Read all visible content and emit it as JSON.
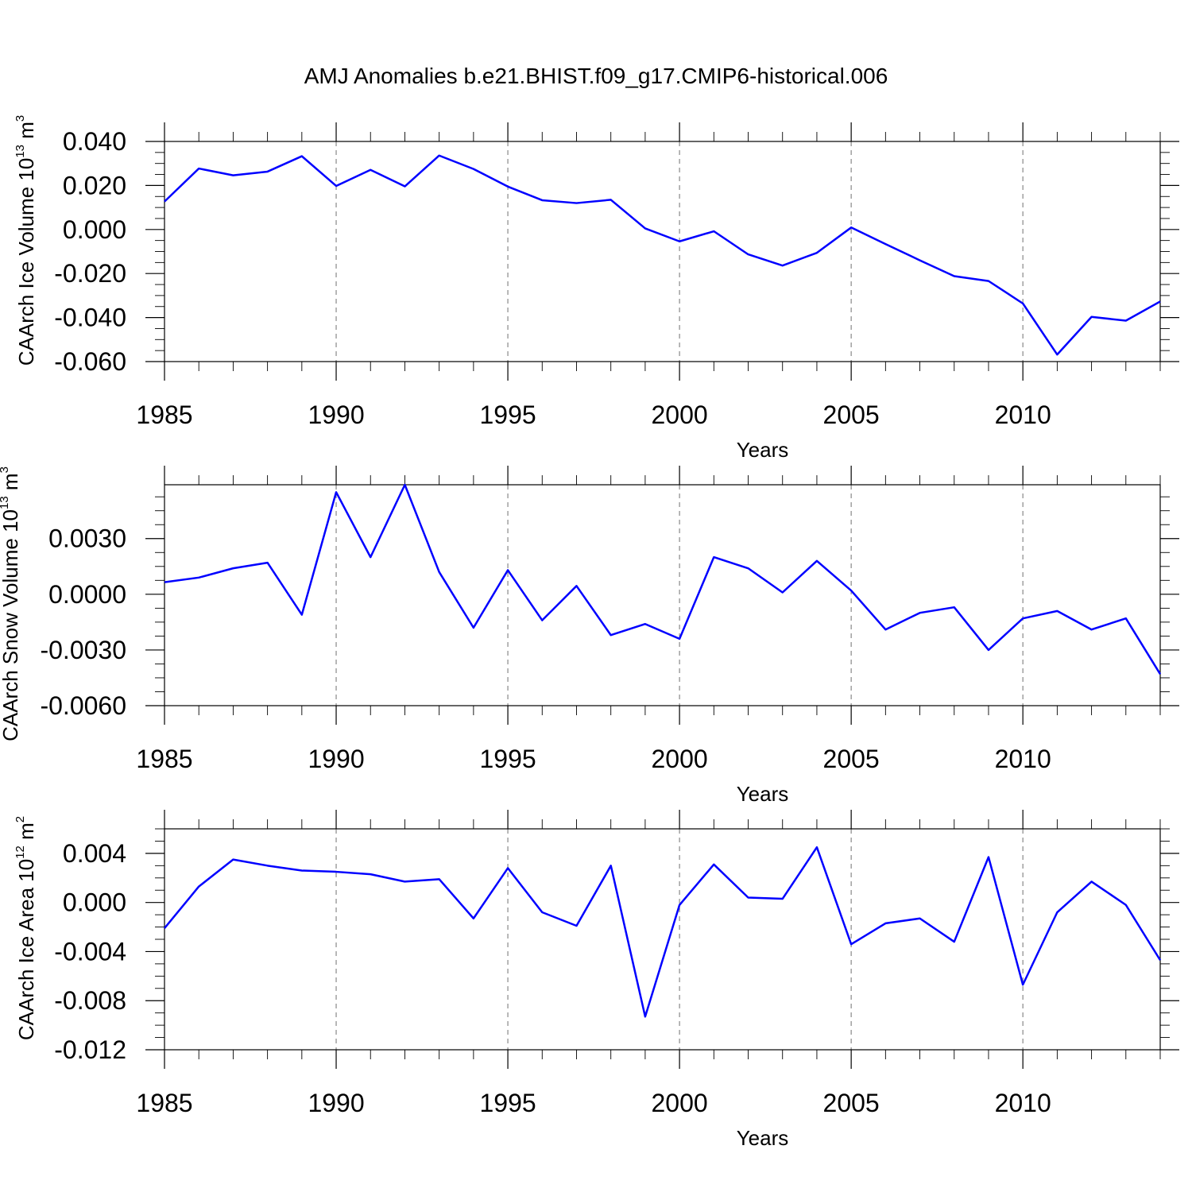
{
  "figure": {
    "title": "AMJ Anomalies b.e21.BHIST.f09_g17.CMIP6-historical.006"
  },
  "chart_data": [
    {
      "type": "line",
      "title": "",
      "xlabel": "Years",
      "ylabel_main": "CAArch Ice Volume 10",
      "ylabel_exp": "13",
      "ylabel_unit": " m",
      "ylabel_unit_exp": "3",
      "xlim": [
        1985,
        2014
      ],
      "ylim": [
        -0.06,
        0.04
      ],
      "xticks": [
        1985,
        1990,
        1995,
        2000,
        2005,
        2010
      ],
      "xtick_labels": [
        "1985",
        "1990",
        "1995",
        "2000",
        "2005",
        "2010"
      ],
      "yticks": [
        -0.06,
        -0.04,
        -0.02,
        0.0,
        0.02,
        0.04
      ],
      "ytick_labels": [
        "-0.060",
        "-0.040",
        "-0.020",
        "0.000",
        "0.020",
        "0.040"
      ],
      "grid": "vertical dashed at major x ticks",
      "x": [
        1985,
        1986,
        1987,
        1988,
        1989,
        1990,
        1991,
        1992,
        1993,
        1994,
        1995,
        1996,
        1997,
        1998,
        1999,
        2000,
        2001,
        2002,
        2003,
        2004,
        2005,
        2006,
        2007,
        2008,
        2009,
        2010,
        2011,
        2012,
        2013,
        2014
      ],
      "series": [
        {
          "name": "CAArch Ice Volume",
          "color": "#0000ff",
          "values": [
            0.0127,
            0.0277,
            0.0246,
            0.0263,
            0.0333,
            0.0198,
            0.0271,
            0.0196,
            0.0336,
            0.0275,
            0.0195,
            0.0133,
            0.012,
            0.0135,
            0.0005,
            -0.0054,
            -0.0008,
            -0.0113,
            -0.0164,
            -0.0106,
            0.0009,
            -0.0066,
            -0.014,
            -0.0212,
            -0.0234,
            -0.0336,
            -0.0568,
            -0.0397,
            -0.0414,
            -0.0327
          ]
        }
      ]
    },
    {
      "type": "line",
      "title": "",
      "xlabel": "Years",
      "ylabel_main": "CAArch Snow Volume 10",
      "ylabel_exp": "13",
      "ylabel_unit": " m",
      "ylabel_unit_exp": "3",
      "xlim": [
        1985,
        2014
      ],
      "ylim": [
        -0.006,
        0.0059
      ],
      "xticks": [
        1985,
        1990,
        1995,
        2000,
        2005,
        2010
      ],
      "xtick_labels": [
        "1985",
        "1990",
        "1995",
        "2000",
        "2005",
        "2010"
      ],
      "yticks": [
        -0.006,
        -0.003,
        0.0,
        0.003
      ],
      "ytick_labels": [
        "-0.0060",
        "-0.0030",
        "0.0000",
        "0.0030"
      ],
      "grid": "vertical dashed at major x ticks",
      "x": [
        1985,
        1986,
        1987,
        1988,
        1989,
        1990,
        1991,
        1992,
        1993,
        1994,
        1995,
        1996,
        1997,
        1998,
        1999,
        2000,
        2001,
        2002,
        2003,
        2004,
        2005,
        2006,
        2007,
        2008,
        2009,
        2010,
        2011,
        2012,
        2013,
        2014
      ],
      "series": [
        {
          "name": "CAArch Snow Volume",
          "color": "#0000ff",
          "values": [
            0.00065,
            0.0009,
            0.0014,
            0.0017,
            -0.0011,
            0.0055,
            0.002,
            0.0059,
            0.0012,
            -0.0018,
            0.0013,
            -0.0014,
            0.00045,
            -0.0022,
            -0.0016,
            -0.0024,
            0.002,
            0.0014,
            0.0001,
            0.0018,
            0.0002,
            -0.0019,
            -0.001,
            -0.0007,
            -0.003,
            -0.0013,
            -0.0009,
            -0.0019,
            -0.0013,
            -0.0043
          ]
        }
      ]
    },
    {
      "type": "line",
      "title": "",
      "xlabel": "Years",
      "ylabel_main": "CAArch Ice Area 10",
      "ylabel_exp": "12",
      "ylabel_unit": " m",
      "ylabel_unit_exp": "2",
      "xlim": [
        1985,
        2014
      ],
      "ylim": [
        -0.012,
        0.006
      ],
      "xticks": [
        1985,
        1990,
        1995,
        2000,
        2005,
        2010
      ],
      "xtick_labels": [
        "1985",
        "1990",
        "1995",
        "2000",
        "2005",
        "2010"
      ],
      "yticks": [
        -0.012,
        -0.008,
        -0.004,
        0.0,
        0.004
      ],
      "ytick_labels": [
        "-0.012",
        "-0.008",
        "-0.004",
        "0.000",
        "0.004"
      ],
      "grid": "vertical dashed at major x ticks",
      "x": [
        1985,
        1986,
        1987,
        1988,
        1989,
        1990,
        1991,
        1992,
        1993,
        1994,
        1995,
        1996,
        1997,
        1998,
        1999,
        2000,
        2001,
        2002,
        2003,
        2004,
        2005,
        2006,
        2007,
        2008,
        2009,
        2010,
        2011,
        2012,
        2013,
        2014
      ],
      "series": [
        {
          "name": "CAArch Ice Area",
          "color": "#0000ff",
          "values": [
            -0.0021,
            0.0013,
            0.0035,
            0.003,
            0.0026,
            0.0025,
            0.0023,
            0.0017,
            0.0019,
            -0.0013,
            0.0028,
            -0.0008,
            -0.0019,
            0.003,
            -0.0093,
            -0.0002,
            0.0031,
            0.0004,
            0.0003,
            0.0045,
            -0.0034,
            -0.0017,
            -0.0013,
            -0.0032,
            0.0037,
            -0.0067,
            -0.0008,
            0.0017,
            -0.0002,
            -0.0047
          ]
        }
      ]
    }
  ]
}
